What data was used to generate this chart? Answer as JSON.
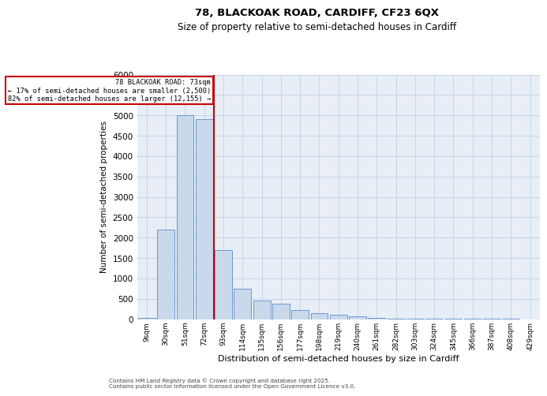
{
  "title1": "78, BLACKOAK ROAD, CARDIFF, CF23 6QX",
  "title2": "Size of property relative to semi-detached houses in Cardiff",
  "xlabel": "Distribution of semi-detached houses by size in Cardiff",
  "ylabel": "Number of semi-detached properties",
  "footnote1": "Contains HM Land Registry data © Crown copyright and database right 2025.",
  "footnote2": "Contains public sector information licensed under the Open Government Licence v3.0.",
  "annotation_title": "78 BLACKOAK ROAD: 73sqm",
  "annotation_line1": "← 17% of semi-detached houses are smaller (2,500)",
  "annotation_line2": "82% of semi-detached houses are larger (12,155) →",
  "categories": [
    "9sqm",
    "30sqm",
    "51sqm",
    "72sqm",
    "93sqm",
    "114sqm",
    "135sqm",
    "156sqm",
    "177sqm",
    "198sqm",
    "219sqm",
    "240sqm",
    "261sqm",
    "282sqm",
    "303sqm",
    "324sqm",
    "345sqm",
    "366sqm",
    "387sqm",
    "408sqm",
    "429sqm"
  ],
  "values": [
    30,
    2200,
    5000,
    4900,
    1700,
    750,
    450,
    370,
    220,
    150,
    100,
    60,
    30,
    15,
    10,
    5,
    3,
    2,
    1,
    1,
    0
  ],
  "bar_color": "#c9d9eb",
  "bar_edge_color": "#5b8cc8",
  "vline_color": "#cc0000",
  "annotation_box_color": "#cc0000",
  "grid_color": "#c8d4e8",
  "bg_color": "#e8eef6",
  "ylim": [
    0,
    6000
  ],
  "yticks": [
    0,
    500,
    1000,
    1500,
    2000,
    2500,
    3000,
    3500,
    4000,
    4500,
    5000,
    5500,
    6000
  ],
  "vline_x": 3.5
}
